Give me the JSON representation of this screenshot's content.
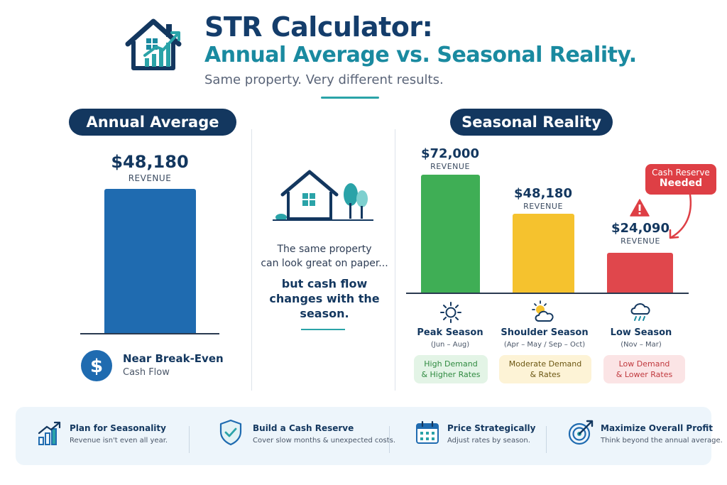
{
  "header": {
    "title_line1": "STR Calculator:",
    "title_line2": "Annual Average vs. Seasonal Reality.",
    "subtitle": "Same property. Very different results."
  },
  "left": {
    "pill": "Annual Average",
    "value": "$48,180",
    "value_label": "REVENUE",
    "bar_value": 48180,
    "bar_color": "#1f6bb0",
    "status_title": "Near Break-Even",
    "status_sub": "Cash Flow"
  },
  "middle": {
    "line1": "The same property",
    "line2": "can look great on paper...",
    "bold1": "but cash flow",
    "bold2": "changes with the",
    "bold3": "season."
  },
  "right": {
    "pill": "Seasonal Reality",
    "callout_line1": "Cash Reserve",
    "callout_line2": "Needed",
    "seasons": [
      {
        "value_text": "$72,000",
        "value_label": "REVENUE",
        "name": "Peak Season",
        "range": "(Jun – Aug)",
        "tag1": "High Demand",
        "tag2": "& Higher Rates",
        "color": "#3fae55",
        "tag_bg": "#e3f4e6",
        "tag_fg": "#2f8a40"
      },
      {
        "value_text": "$48,180",
        "value_label": "REVENUE",
        "name": "Shoulder Season",
        "range": "(Apr – May / Sep – Oct)",
        "tag1": "Moderate Demand",
        "tag2": "& Rates",
        "color": "#f5c22e",
        "tag_bg": "#fdf3d6",
        "tag_fg": "#6b5612"
      },
      {
        "value_text": "$24,090",
        "value_label": "REVENUE",
        "name": "Low Season",
        "range": "(Nov – Mar)",
        "tag1": "Low Demand",
        "tag2": "& Lower Rates",
        "color": "#e0474c",
        "tag_bg": "#fbe4e5",
        "tag_fg": "#c0393e"
      }
    ]
  },
  "tips": [
    {
      "title": "Plan for Seasonality",
      "desc": "Revenue isn't even all year.",
      "icon": "rising-bar-chart-icon"
    },
    {
      "title": "Build a Cash Reserve",
      "desc": "Cover slow months & unexpected costs.",
      "icon": "shield-check-icon"
    },
    {
      "title": "Price Strategically",
      "desc": "Adjust rates by season.",
      "icon": "calendar-icon"
    },
    {
      "title": "Maximize Overall Profit",
      "desc": "Think beyond the annual average.",
      "icon": "target-arrow-icon"
    }
  ],
  "chart_data": [
    {
      "type": "bar",
      "categories": [
        "Annual Average"
      ],
      "values": [
        48180
      ]
    },
    {
      "type": "bar",
      "categories": [
        "Peak Season",
        "Shoulder Season",
        "Low Season"
      ],
      "values": [
        72000,
        48180,
        24090
      ]
    }
  ]
}
